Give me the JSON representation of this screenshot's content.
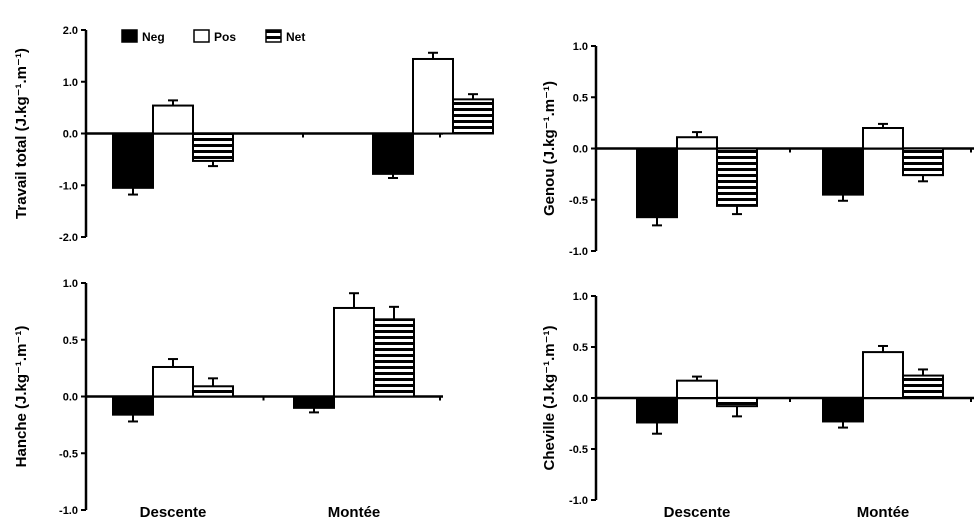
{
  "chart_data": [
    {
      "type": "bar",
      "ylabel": "Travail total (J.kg⁻¹.m⁻¹)",
      "ylim": [
        -2.0,
        2.0
      ],
      "yticks": [
        "2.0",
        "1.0",
        "0.0",
        "-1.0",
        "-2.0"
      ],
      "categories": [
        "Descente",
        "Montée"
      ],
      "show_categories": false,
      "legend": true,
      "series": [
        {
          "name": "Neg",
          "values": [
            -1.05,
            -0.78
          ],
          "errors": [
            0.13,
            0.08
          ]
        },
        {
          "name": "Pos",
          "values": [
            0.54,
            1.44
          ],
          "errors": [
            0.1,
            0.12
          ]
        },
        {
          "name": "Net",
          "values": [
            -0.53,
            0.66
          ],
          "errors": [
            0.1,
            0.1
          ]
        }
      ]
    },
    {
      "type": "bar",
      "ylabel": "Genou (J.kg⁻¹.m⁻¹)",
      "ylim": [
        -1.0,
        1.0
      ],
      "yticks": [
        "1.0",
        "0.5",
        "0.0",
        "-0.5",
        "-1.0"
      ],
      "categories": [
        "Descente",
        "Montée"
      ],
      "show_categories": false,
      "legend": false,
      "series": [
        {
          "name": "Neg",
          "values": [
            -0.67,
            -0.45
          ],
          "errors": [
            0.08,
            0.06
          ]
        },
        {
          "name": "Pos",
          "values": [
            0.11,
            0.2
          ],
          "errors": [
            0.05,
            0.04
          ]
        },
        {
          "name": "Net",
          "values": [
            -0.56,
            -0.26
          ],
          "errors": [
            0.08,
            0.06
          ]
        }
      ]
    },
    {
      "type": "bar",
      "ylabel": "Hanche (J.kg⁻¹.m⁻¹)",
      "ylim": [
        -1.0,
        1.0
      ],
      "yticks": [
        "1.0",
        "0.5",
        "0.0",
        "-0.5",
        "-1.0"
      ],
      "categories": [
        "Descente",
        "Montée"
      ],
      "show_categories": true,
      "legend": false,
      "series": [
        {
          "name": "Neg",
          "values": [
            -0.16,
            -0.1
          ],
          "errors": [
            0.06,
            0.04
          ]
        },
        {
          "name": "Pos",
          "values": [
            0.26,
            0.78
          ],
          "errors": [
            0.07,
            0.13
          ]
        },
        {
          "name": "Net",
          "values": [
            0.09,
            0.68
          ],
          "errors": [
            0.07,
            0.11
          ]
        }
      ]
    },
    {
      "type": "bar",
      "ylabel": "Cheville (J.kg⁻¹.m⁻¹)",
      "ylim": [
        -1.0,
        1.0
      ],
      "yticks": [
        "1.0",
        "0.5",
        "0.0",
        "-0.5",
        "-1.0"
      ],
      "categories": [
        "Descente",
        "Montée"
      ],
      "show_categories": true,
      "legend": false,
      "series": [
        {
          "name": "Neg",
          "values": [
            -0.24,
            -0.23
          ],
          "errors": [
            0.11,
            0.06
          ]
        },
        {
          "name": "Pos",
          "values": [
            0.17,
            0.45
          ],
          "errors": [
            0.04,
            0.06
          ]
        },
        {
          "name": "Net",
          "values": [
            -0.08,
            0.22
          ],
          "errors": [
            0.1,
            0.06
          ]
        }
      ]
    }
  ]
}
